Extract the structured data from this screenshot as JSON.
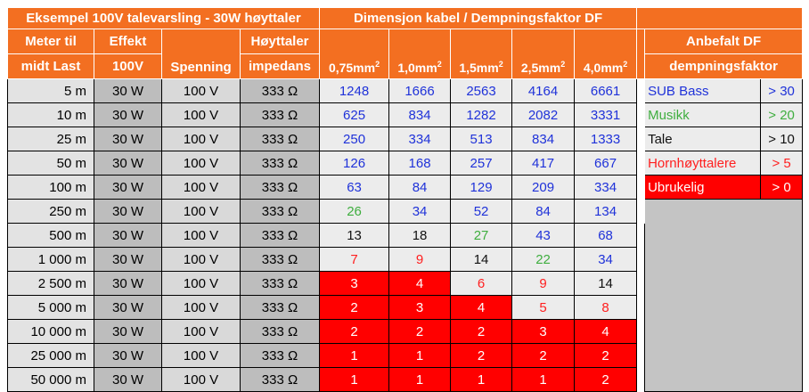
{
  "title_left": "Eksempel 100V talevarsling - 30W høyttaler",
  "title_mid": "Dimensjon kabel / Dempningsfaktor DF",
  "col_meter_line1": "Meter til",
  "col_meter_line2": "midt Last",
  "col_effekt_line1": "Effekt",
  "col_effekt_line2": "100V",
  "col_spenning": "Spenning",
  "col_hoyttaler_line1": "Høyttaler",
  "col_hoyttaler_line2": "impedans",
  "cables": [
    "0,75mm",
    "1,0mm",
    "1,5mm",
    "2,5mm",
    "4,0mm"
  ],
  "cable_sup": "2",
  "rec_title_line1": "Anbefalt DF",
  "rec_title_line2": "dempningsfaktor",
  "rows": [
    {
      "dist": "5 m",
      "effekt": "30 W",
      "spenning": "100 V",
      "imp": "333 Ω",
      "df": [
        "1248",
        "1666",
        "2563",
        "4164",
        "6661"
      ],
      "cls": [
        "c-blue",
        "c-blue",
        "c-blue",
        "c-blue",
        "c-blue"
      ],
      "bg": [
        "",
        "",
        "",
        "",
        ""
      ]
    },
    {
      "dist": "10 m",
      "effekt": "30 W",
      "spenning": "100 V",
      "imp": "333 Ω",
      "df": [
        "625",
        "834",
        "1282",
        "2082",
        "3331"
      ],
      "cls": [
        "c-blue",
        "c-blue",
        "c-blue",
        "c-blue",
        "c-blue"
      ],
      "bg": [
        "",
        "",
        "",
        "",
        ""
      ]
    },
    {
      "dist": "25 m",
      "effekt": "30 W",
      "spenning": "100 V",
      "imp": "333 Ω",
      "df": [
        "250",
        "334",
        "513",
        "834",
        "1333"
      ],
      "cls": [
        "c-blue",
        "c-blue",
        "c-blue",
        "c-blue",
        "c-blue"
      ],
      "bg": [
        "",
        "",
        "",
        "",
        ""
      ]
    },
    {
      "dist": "50 m",
      "effekt": "30 W",
      "spenning": "100 V",
      "imp": "333 Ω",
      "df": [
        "126",
        "168",
        "257",
        "417",
        "667"
      ],
      "cls": [
        "c-blue",
        "c-blue",
        "c-blue",
        "c-blue",
        "c-blue"
      ],
      "bg": [
        "",
        "",
        "",
        "",
        ""
      ]
    },
    {
      "dist": "100 m",
      "effekt": "30 W",
      "spenning": "100 V",
      "imp": "333 Ω",
      "df": [
        "63",
        "84",
        "129",
        "209",
        "334"
      ],
      "cls": [
        "c-blue",
        "c-blue",
        "c-blue",
        "c-blue",
        "c-blue"
      ],
      "bg": [
        "",
        "",
        "",
        "",
        ""
      ]
    },
    {
      "dist": "250 m",
      "effekt": "30 W",
      "spenning": "100 V",
      "imp": "333 Ω",
      "df": [
        "26",
        "34",
        "52",
        "84",
        "134"
      ],
      "cls": [
        "c-green",
        "c-blue",
        "c-blue",
        "c-blue",
        "c-blue"
      ],
      "bg": [
        "",
        "",
        "",
        "",
        ""
      ]
    },
    {
      "dist": "500 m",
      "effekt": "30 W",
      "spenning": "100 V",
      "imp": "333 Ω",
      "df": [
        "13",
        "18",
        "27",
        "43",
        "68"
      ],
      "cls": [
        "c-black",
        "c-black",
        "c-green",
        "c-blue",
        "c-blue"
      ],
      "bg": [
        "",
        "",
        "",
        "",
        ""
      ]
    },
    {
      "dist": "1 000 m",
      "effekt": "30 W",
      "spenning": "100 V",
      "imp": "333 Ω",
      "df": [
        "7",
        "9",
        "14",
        "22",
        "34"
      ],
      "cls": [
        "c-red",
        "c-red",
        "c-black",
        "c-green",
        "c-blue"
      ],
      "bg": [
        "",
        "",
        "",
        "",
        ""
      ]
    },
    {
      "dist": "2 500 m",
      "effekt": "30 W",
      "spenning": "100 V",
      "imp": "333 Ω",
      "df": [
        "3",
        "4",
        "6",
        "9",
        "14"
      ],
      "cls": [
        "c-white",
        "c-white",
        "c-red",
        "c-red",
        "c-black"
      ],
      "bg": [
        "red",
        "red",
        "",
        "",
        ""
      ]
    },
    {
      "dist": "5 000 m",
      "effekt": "30 W",
      "spenning": "100 V",
      "imp": "333 Ω",
      "df": [
        "2",
        "3",
        "4",
        "5",
        "8"
      ],
      "cls": [
        "c-white",
        "c-white",
        "c-white",
        "c-red",
        "c-red"
      ],
      "bg": [
        "red",
        "red",
        "red",
        "",
        ""
      ]
    },
    {
      "dist": "10 000 m",
      "effekt": "30 W",
      "spenning": "100 V",
      "imp": "333 Ω",
      "df": [
        "2",
        "2",
        "2",
        "3",
        "4"
      ],
      "cls": [
        "c-white",
        "c-white",
        "c-white",
        "c-white",
        "c-white"
      ],
      "bg": [
        "red",
        "red",
        "red",
        "red",
        "red"
      ]
    },
    {
      "dist": "25 000 m",
      "effekt": "30 W",
      "spenning": "100 V",
      "imp": "333 Ω",
      "df": [
        "1",
        "1",
        "2",
        "2",
        "2"
      ],
      "cls": [
        "c-white",
        "c-white",
        "c-white",
        "c-white",
        "c-white"
      ],
      "bg": [
        "red",
        "red",
        "red",
        "red",
        "red"
      ]
    },
    {
      "dist": "50 000 m",
      "effekt": "30 W",
      "spenning": "100 V",
      "imp": "333 Ω",
      "df": [
        "1",
        "1",
        "1",
        "1",
        "2"
      ],
      "cls": [
        "c-white",
        "c-white",
        "c-white",
        "c-white",
        "c-white"
      ],
      "bg": [
        "red",
        "red",
        "red",
        "red",
        "red"
      ]
    }
  ],
  "recommend": [
    {
      "label": "SUB Bass",
      "value": "> 30",
      "color": "c-blue",
      "bg": ""
    },
    {
      "label": "Musikk",
      "value": "> 20",
      "color": "c-green",
      "bg": ""
    },
    {
      "label": "Tale",
      "value": "> 10",
      "color": "c-black",
      "bg": ""
    },
    {
      "label": "Hornhøyttalere",
      "value": "> 5",
      "color": "c-red",
      "bg": ""
    },
    {
      "label": "Ubrukelig",
      "value": "> 0",
      "color": "c-white",
      "bg": "red"
    }
  ]
}
